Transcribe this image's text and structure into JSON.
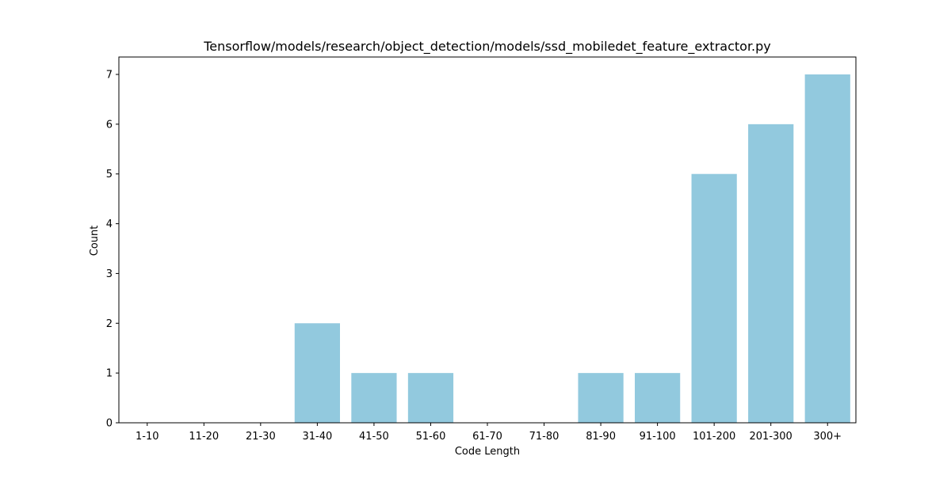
{
  "chart_data": {
    "type": "bar",
    "title": "Tensorflow/models/research/object_detection/models/ssd_mobiledet_feature_extractor.py",
    "xlabel": "Code Length",
    "ylabel": "Count",
    "categories": [
      "1-10",
      "11-20",
      "21-30",
      "31-40",
      "41-50",
      "51-60",
      "61-70",
      "71-80",
      "81-90",
      "91-100",
      "101-200",
      "201-300",
      "300+"
    ],
    "values": [
      0,
      0,
      0,
      2,
      1,
      1,
      0,
      0,
      1,
      1,
      5,
      6,
      7
    ],
    "ylim": [
      0,
      7.35
    ],
    "yticks": [
      0,
      1,
      2,
      3,
      4,
      5,
      6,
      7
    ],
    "bar_color": "#92c9de",
    "grid": false,
    "legend": "none"
  }
}
